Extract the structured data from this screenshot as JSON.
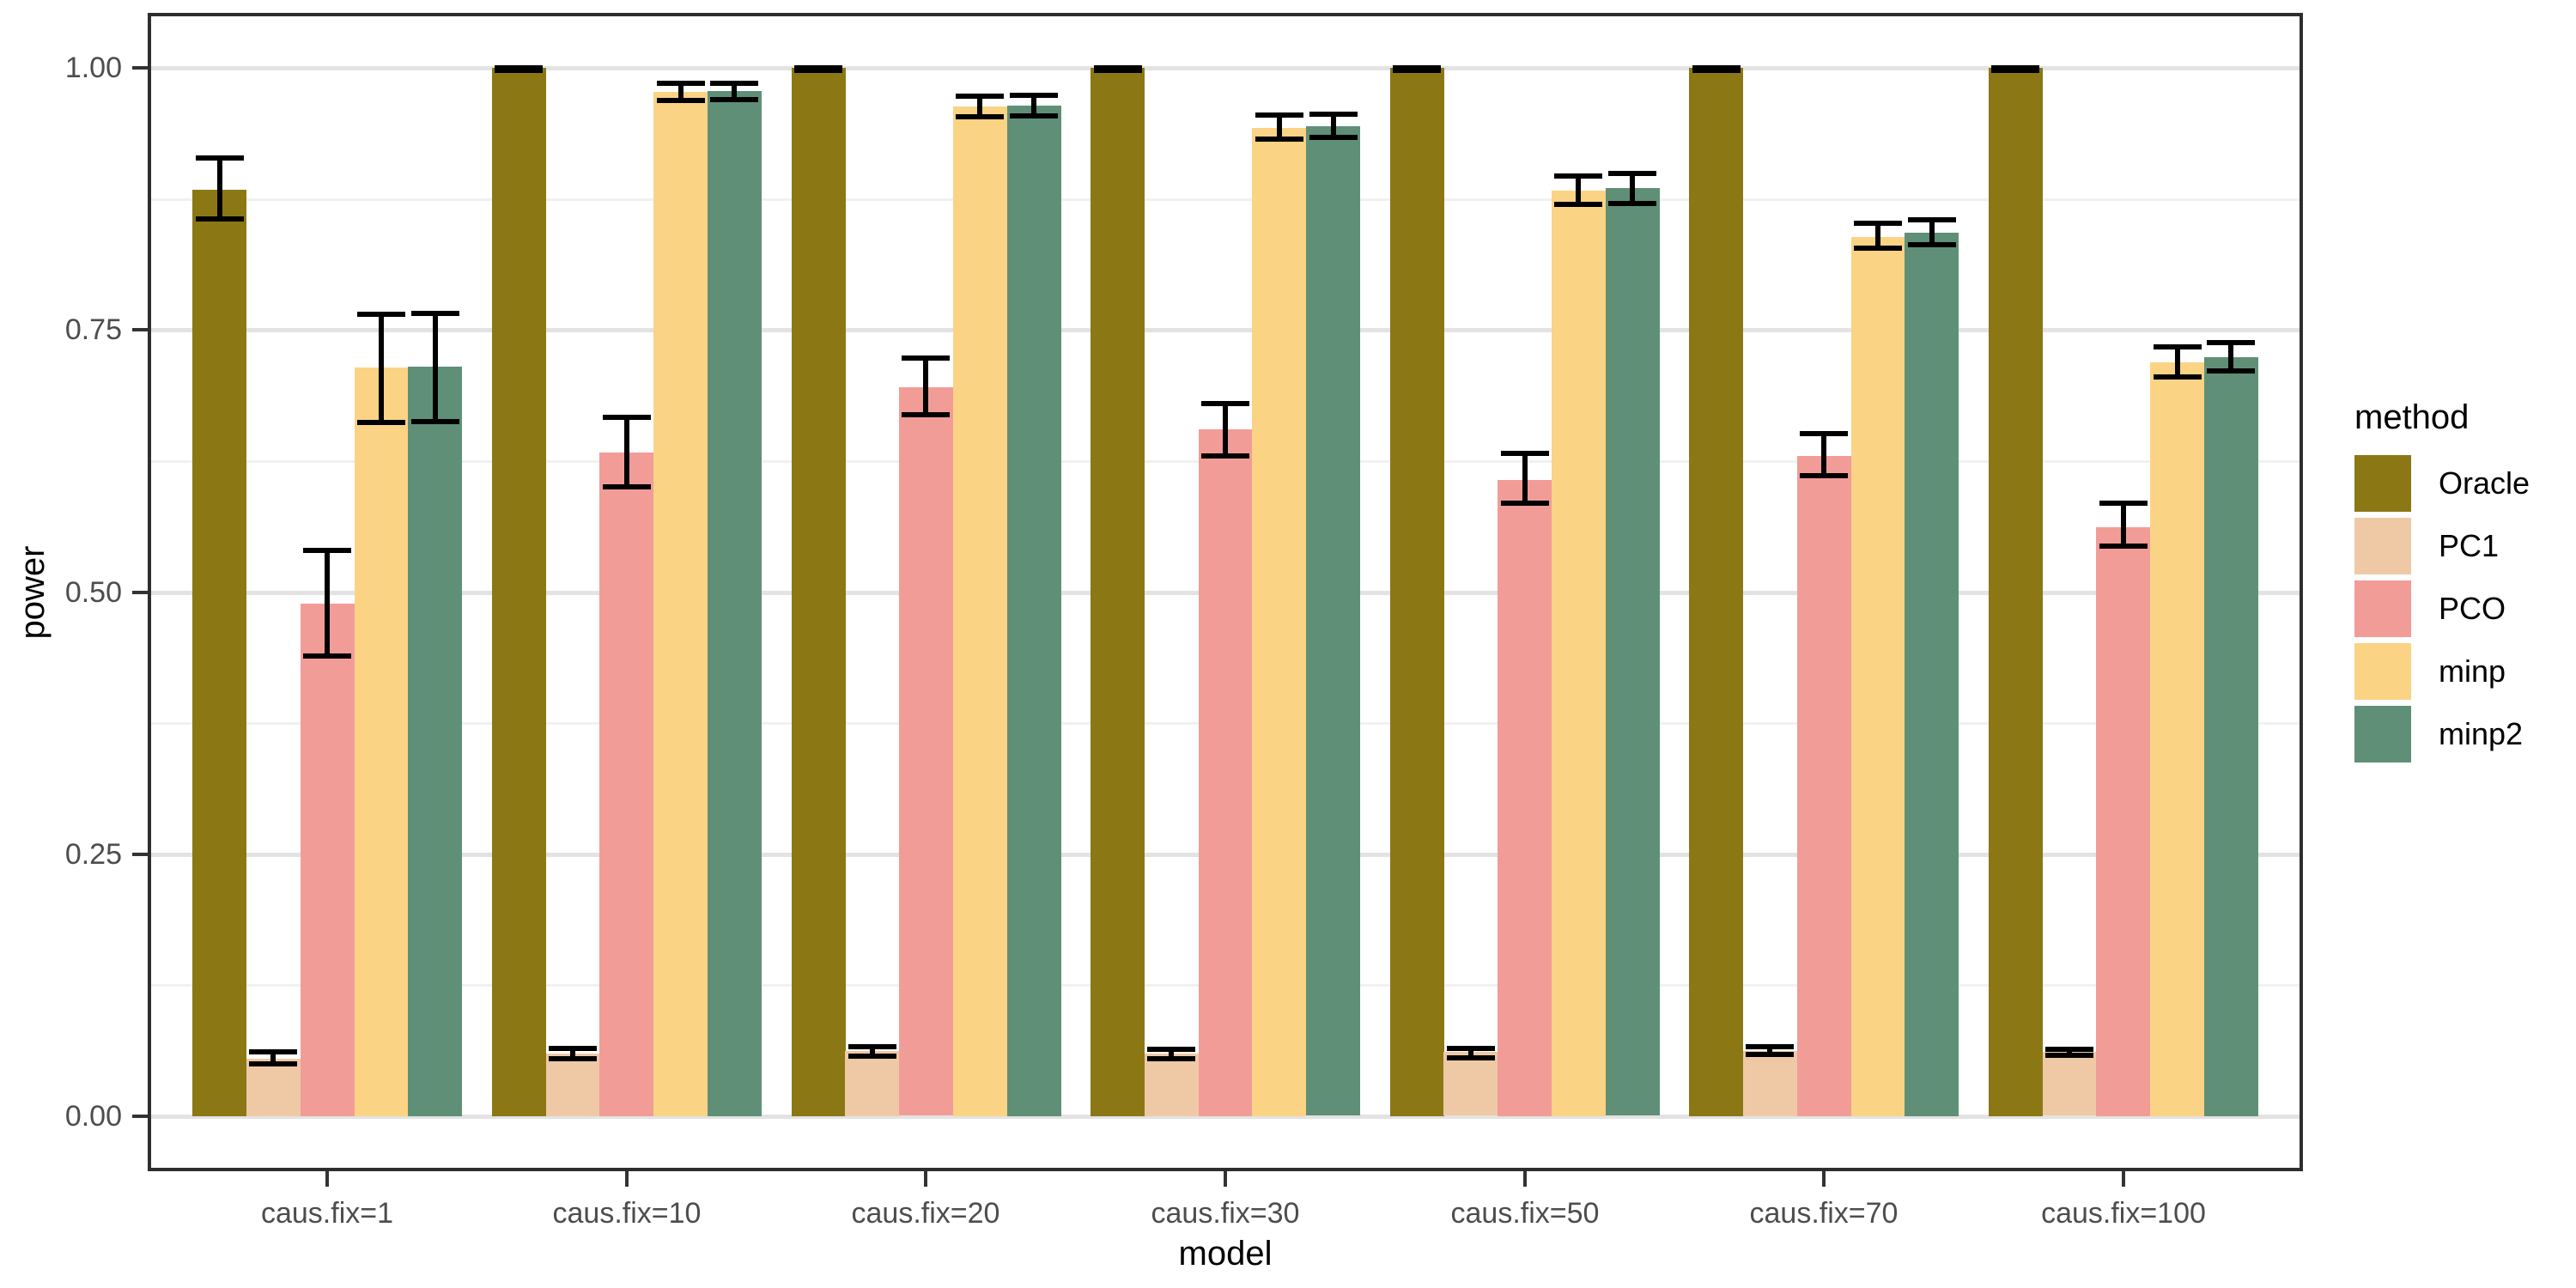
{
  "chart_data": {
    "type": "bar",
    "title": "",
    "xlabel": "model",
    "ylabel": "power",
    "legend_title": "method",
    "legend_position": "right",
    "grid": "major and minor horizontal gridlines on white panel",
    "ylim": [
      0,
      1
    ],
    "yticks": [
      0,
      0.25,
      0.5,
      0.75,
      1.0
    ],
    "ytick_labels": [
      "0.00",
      "0.25",
      "0.50",
      "0.75",
      "1.00"
    ],
    "minor_yticks": [
      0.125,
      0.375,
      0.625,
      0.875
    ],
    "categories": [
      "caus.fix=1",
      "caus.fix=10",
      "caus.fix=20",
      "caus.fix=30",
      "caus.fix=50",
      "caus.fix=70",
      "caus.fix=100"
    ],
    "error_bar_color": "#000000",
    "series": [
      {
        "name": "Oracle",
        "color": "#8B7815",
        "values": [
          0.884,
          1.0,
          1.0,
          1.0,
          1.0,
          1.0,
          1.0
        ],
        "err_lo": [
          0.856,
          0.998,
          0.998,
          0.998,
          0.998,
          0.998,
          0.998
        ],
        "err_hi": [
          0.914,
          1.0,
          1.0,
          1.0,
          1.0,
          1.0,
          1.0
        ]
      },
      {
        "name": "PC1",
        "color": "#EFC9A6",
        "values": [
          0.055,
          0.06,
          0.062,
          0.06,
          0.061,
          0.062,
          0.061
        ],
        "err_lo": [
          0.05,
          0.055,
          0.057,
          0.055,
          0.056,
          0.059,
          0.058
        ],
        "err_hi": [
          0.061,
          0.065,
          0.066,
          0.064,
          0.065,
          0.066,
          0.064
        ]
      },
      {
        "name": "PCO",
        "color": "#F29C98",
        "values": [
          0.489,
          0.633,
          0.695,
          0.655,
          0.607,
          0.63,
          0.562
        ],
        "err_lo": [
          0.439,
          0.6,
          0.669,
          0.63,
          0.585,
          0.611,
          0.544
        ],
        "err_hi": [
          0.54,
          0.667,
          0.723,
          0.68,
          0.632,
          0.651,
          0.585
        ]
      },
      {
        "name": "minp",
        "color": "#FBD385",
        "values": [
          0.714,
          0.977,
          0.963,
          0.943,
          0.883,
          0.839,
          0.719
        ],
        "err_lo": [
          0.662,
          0.969,
          0.953,
          0.932,
          0.87,
          0.828,
          0.705
        ],
        "err_hi": [
          0.765,
          0.985,
          0.973,
          0.955,
          0.897,
          0.852,
          0.734
        ]
      },
      {
        "name": "minp2",
        "color": "#5F9077",
        "values": [
          0.715,
          0.978,
          0.964,
          0.944,
          0.885,
          0.843,
          0.724
        ],
        "err_lo": [
          0.663,
          0.97,
          0.954,
          0.934,
          0.871,
          0.831,
          0.711
        ],
        "err_hi": [
          0.766,
          0.985,
          0.974,
          0.956,
          0.899,
          0.855,
          0.738
        ]
      }
    ]
  }
}
